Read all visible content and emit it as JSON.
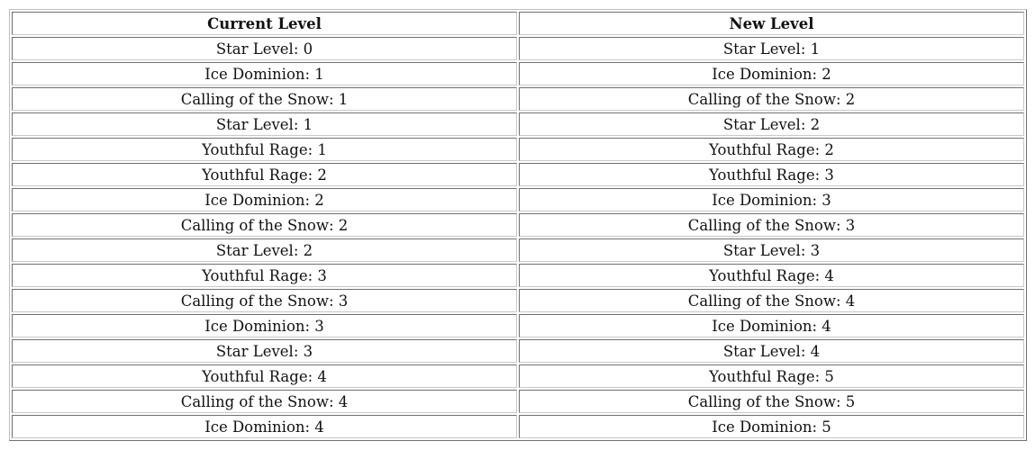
{
  "table": {
    "headers": [
      "Current Level",
      "New Level"
    ],
    "rows": [
      [
        "Star Level: 0",
        "Star Level: 1"
      ],
      [
        "Ice Dominion: 1",
        "Ice Dominion: 2"
      ],
      [
        "Calling of the Snow: 1",
        "Calling of the Snow: 2"
      ],
      [
        "Star Level: 1",
        "Star Level: 2"
      ],
      [
        "Youthful Rage: 1",
        "Youthful Rage: 2"
      ],
      [
        "Youthful Rage: 2",
        "Youthful Rage: 3"
      ],
      [
        "Ice Dominion: 2",
        "Ice Dominion: 3"
      ],
      [
        "Calling of the Snow: 2",
        "Calling of the Snow: 3"
      ],
      [
        "Star Level: 2",
        "Star Level: 3"
      ],
      [
        "Youthful Rage: 3",
        "Youthful Rage: 4"
      ],
      [
        "Calling of the Snow: 3",
        "Calling of the Snow: 4"
      ],
      [
        "Ice Dominion: 3",
        "Ice Dominion: 4"
      ],
      [
        "Star Level: 3",
        "Star Level: 4"
      ],
      [
        "Youthful Rage: 4",
        "Youthful Rage: 5"
      ],
      [
        "Calling of the Snow: 4",
        "Calling of the Snow: 5"
      ],
      [
        "Ice Dominion: 4",
        "Ice Dominion: 5"
      ]
    ]
  }
}
